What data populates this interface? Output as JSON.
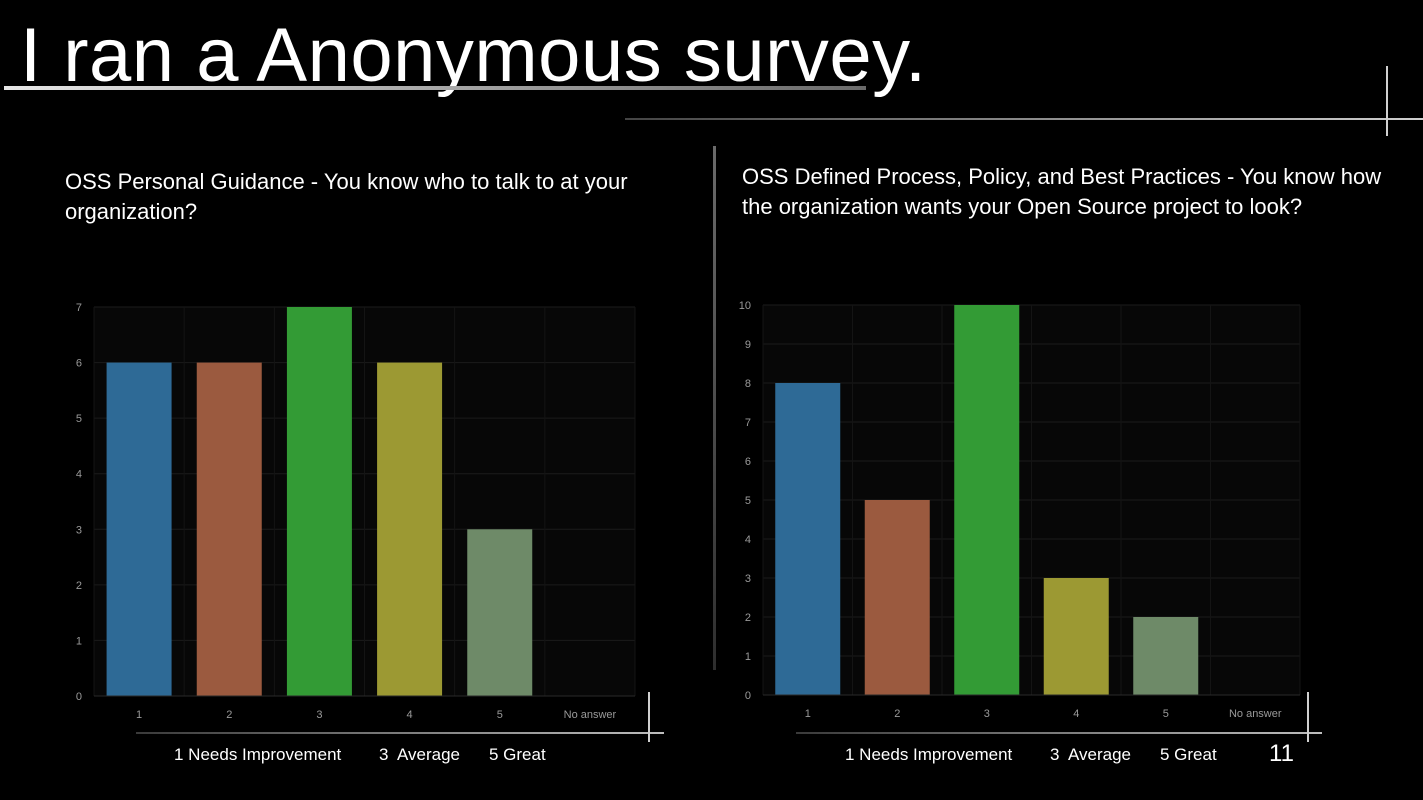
{
  "slide": {
    "title": "I ran a Anonymous survey.",
    "page_number": "11",
    "colors": {
      "background": "#000000",
      "text": "#ffffff",
      "rule": "#8a8a8a"
    }
  },
  "left": {
    "title": "OSS Personal Guidance - You know who to talk to at your organization?",
    "legend": {
      "l1": "1 Needs Improvement",
      "l3": "3  Average",
      "l5": "5 Great"
    }
  },
  "right": {
    "title": "OSS Defined Process, Policy, and Best Practices - You know how the organization wants your Open Source project to look?",
    "legend": {
      "l1": "1 Needs Improvement",
      "l3": "3  Average",
      "l5": "5 Great"
    }
  },
  "chart_data": [
    {
      "type": "bar",
      "categories": [
        "1",
        "2",
        "3",
        "4",
        "5",
        "No answer"
      ],
      "values": [
        6,
        6,
        7,
        6,
        3,
        0
      ],
      "ylim": [
        0,
        7
      ],
      "yticks": [
        0,
        1,
        2,
        3,
        4,
        5,
        6,
        7
      ],
      "colors": [
        "#2e6a96",
        "#9b5a3f",
        "#339b35",
        "#9c9933",
        "#6e8a68",
        "#555555"
      ],
      "grid": true
    },
    {
      "type": "bar",
      "categories": [
        "1",
        "2",
        "3",
        "4",
        "5",
        "No answer"
      ],
      "values": [
        8,
        5,
        10,
        3,
        2,
        0
      ],
      "ylim": [
        0,
        10
      ],
      "yticks": [
        0,
        1,
        2,
        3,
        4,
        5,
        6,
        7,
        8,
        9,
        10
      ],
      "colors": [
        "#2e6a96",
        "#9b5a3f",
        "#339b35",
        "#9c9933",
        "#6e8a68",
        "#555555"
      ],
      "grid": true
    }
  ]
}
